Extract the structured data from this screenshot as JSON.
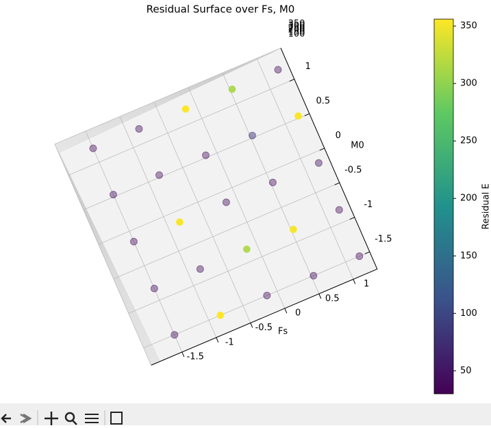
{
  "chart_data": {
    "type": "scatter3d",
    "title": "Residual Surface over Fs, M0",
    "xlabel": "Fs",
    "ylabel": "M0",
    "x": [
      -1.5,
      -0.83,
      -0.15,
      0.53,
      1.2,
      -1.5,
      -0.83,
      -0.15,
      0.53,
      1.2,
      -1.5,
      -0.83,
      -0.15,
      0.53,
      1.2,
      -1.5,
      -0.83,
      -0.15,
      0.53,
      1.2,
      -1.5,
      -0.83,
      -0.15,
      0.53,
      1.2
    ],
    "y": [
      1.2,
      1.2,
      1.2,
      1.2,
      1.2,
      0.53,
      0.53,
      0.53,
      0.53,
      0.53,
      -0.15,
      -0.15,
      -0.15,
      -0.15,
      -0.15,
      -0.83,
      -0.83,
      -0.83,
      -0.83,
      -0.83,
      -1.5,
      -1.5,
      -1.5,
      -1.5,
      -1.5
    ],
    "z": [
      38,
      42,
      355,
      312,
      40,
      45,
      36,
      41,
      85,
      354,
      39,
      353,
      44,
      37,
      42,
      40,
      43,
      315,
      352,
      38,
      41,
      356,
      39,
      44,
      37
    ],
    "xticks": [
      -1.5,
      -1.0,
      -0.5,
      0.0,
      0.5,
      1.0
    ],
    "yticks": [
      1.0,
      0.5,
      0.0,
      -0.5,
      -1.0,
      -1.5
    ],
    "zticks": [
      100,
      150,
      200,
      250,
      300,
      350
    ],
    "colormap": "viridis",
    "colorbar": {
      "label": "Residual E",
      "lim": [
        30,
        356
      ],
      "ticks": [
        50,
        100,
        150,
        200,
        250,
        300,
        350
      ]
    },
    "grid": true
  }
}
